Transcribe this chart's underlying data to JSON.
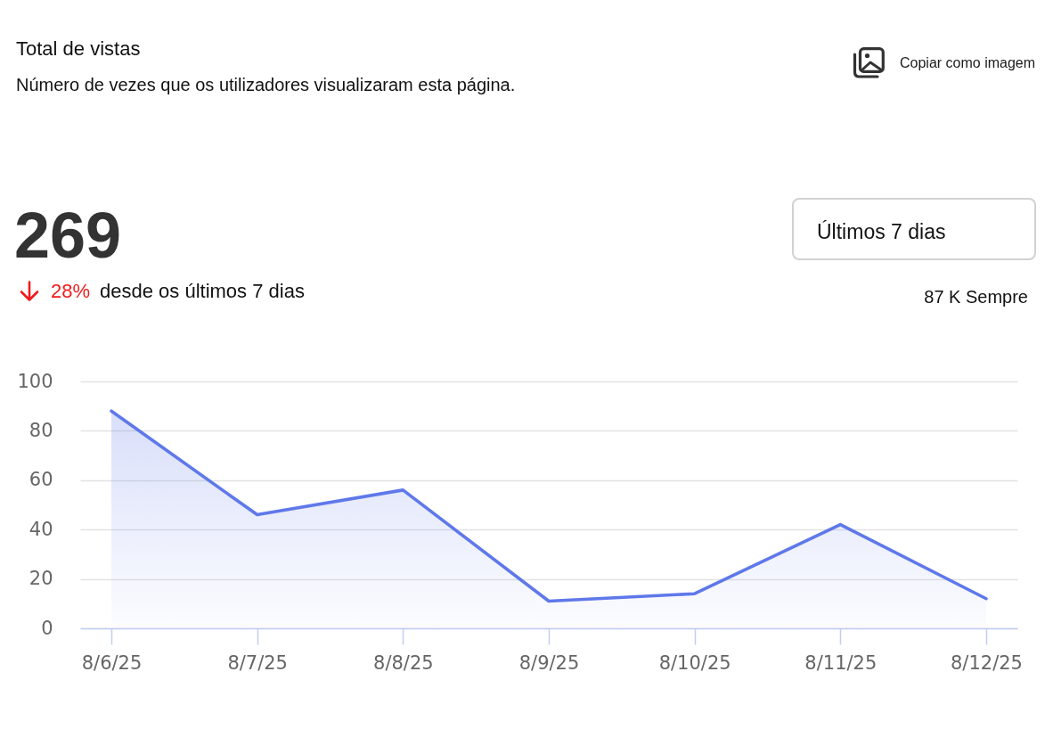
{
  "chart_data": {
    "type": "area",
    "title": "Total de vistas",
    "subtitle": "Número de vezes que os utilizadores visualizaram esta página.",
    "categories": [
      "8/6/25",
      "8/7/25",
      "8/8/25",
      "8/9/25",
      "8/10/25",
      "8/11/25",
      "8/12/25"
    ],
    "series": [
      {
        "color": "#5f78ea",
        "values": [
          88,
          46,
          56,
          11,
          14,
          42,
          12
        ]
      }
    ],
    "ylim": [
      0,
      100
    ],
    "yticks": [
      0,
      20,
      40,
      60,
      80,
      100
    ],
    "grid": "y",
    "annotations": [
      "Copiar como imagem",
      "269",
      "28%",
      "desde os últimos 7 dias",
      "Últimos 7 dias",
      "87 K Sempre"
    ]
  }
}
